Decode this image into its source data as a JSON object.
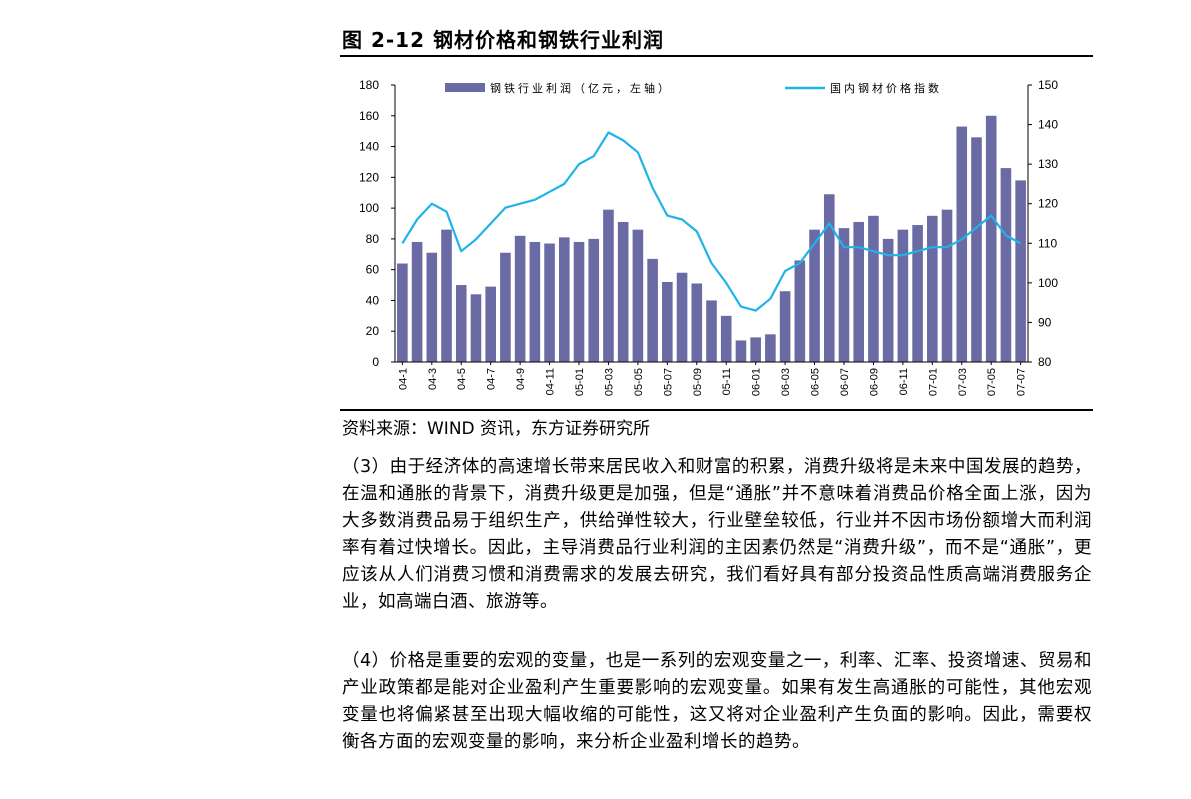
{
  "figure": {
    "title": "图 2-12  钢材价格和钢铁行业利润",
    "source": "资料来源：WIND 资讯，东方证券研究所"
  },
  "chart_data": {
    "type": "bar",
    "series": [
      {
        "name": "钢铁行业利润（亿元，左轴）",
        "axis": "left",
        "kind": "bar",
        "color": "#6a6aa5",
        "values": [
          64,
          78,
          71,
          86,
          50,
          44,
          49,
          71,
          82,
          78,
          77,
          81,
          78,
          80,
          99,
          91,
          86,
          67,
          52,
          58,
          51,
          40,
          30,
          14,
          16,
          18,
          46,
          66,
          86,
          109,
          87,
          91,
          95,
          80,
          86,
          89,
          95,
          99,
          153,
          146,
          160,
          126,
          118
        ]
      },
      {
        "name": "国内钢材价格指数",
        "axis": "right",
        "kind": "line",
        "color": "#1fb3e8",
        "values": [
          110,
          116,
          120,
          118,
          108,
          111,
          115,
          119,
          120,
          121,
          123,
          125,
          130,
          132,
          138,
          136,
          133,
          124,
          117,
          116,
          113,
          105,
          100,
          94,
          93,
          96,
          103,
          105,
          110,
          115,
          109,
          109,
          108,
          107,
          107,
          108,
          109,
          109,
          111,
          114,
          117,
          112,
          110
        ]
      }
    ],
    "ylim_left": [
      0,
      180
    ],
    "yticks_left": [
      "0",
      "20",
      "40",
      "60",
      "80",
      "100",
      "120",
      "140",
      "160",
      "180"
    ],
    "ylim_right": [
      80,
      150
    ],
    "yticks_right": [
      "80",
      "90",
      "100",
      "110",
      "120",
      "130",
      "140",
      "150"
    ],
    "xtick_labels": [
      "04-1",
      "04-3",
      "04-5",
      "04-7",
      "04-9",
      "04-11",
      "05-01",
      "05-03",
      "05-05",
      "05-07",
      "05-09",
      "05-11",
      "06-01",
      "06-03",
      "06-05",
      "06-07",
      "06-09",
      "06-11",
      "07-01",
      "07-03",
      "07-05",
      "07-07"
    ],
    "legend": [
      "钢铁行业利润（亿元，左轴）",
      "国内钢材价格指数"
    ],
    "legend_position": "top"
  },
  "paragraphs": [
    "（3）由于经济体的高速增长带来居民收入和财富的积累，消费升级将是未来中国发展的趋势，在温和通胀的背景下，消费升级更是加强，但是“通胀”并不意味着消费品价格全面上涨，因为大多数消费品易于组织生产，供给弹性较大，行业壁垒较低，行业并不因市场份额增大而利润率有着过快增长。因此，主导消费品行业利润的主因素仍然是“消费升级”，而不是“通胀”，更应该从人们消费习惯和消费需求的发展去研究，我们看好具有部分投资品性质高端消费服务企业，如高端白酒、旅游等。",
    "（4）价格是重要的宏观的变量，也是一系列的宏观变量之一，利率、汇率、投资增速、贸易和产业政策都是能对企业盈利产生重要影响的宏观变量。如果有发生高通胀的可能性，其他宏观变量也将偏紧甚至出现大幅收缩的可能性，这又将对企业盈利产生负面的影响。因此，需要权衡各方面的宏观变量的影响，来分析企业盈利增长的趋势。"
  ]
}
